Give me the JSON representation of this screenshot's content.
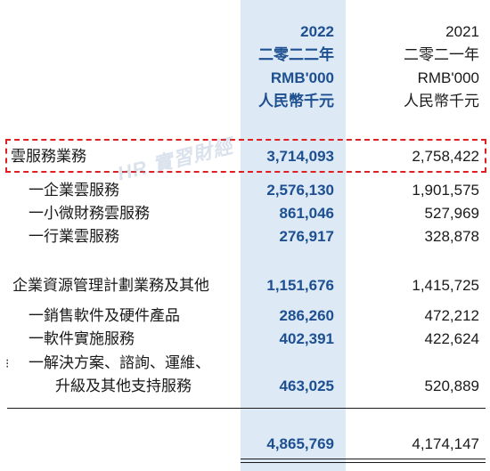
{
  "headers": {
    "y2022": [
      "2022",
      "二零二二年",
      "RMB'000",
      "人民幣千元"
    ],
    "y2021": [
      "2021",
      "二零二一年",
      "RMB'000",
      "人民幣千元"
    ]
  },
  "rows": [
    {
      "label": "雲服務業務",
      "v2022": "3,714,093",
      "v2021": "2,758,422"
    },
    {
      "label": "一企業雲服務",
      "v2022": "2,576,130",
      "v2021": "1,901,575"
    },
    {
      "label": "一小微財務雲服務",
      "v2022": "861,046",
      "v2021": "527,969"
    },
    {
      "label": "一行業雲服務",
      "v2022": "276,917",
      "v2021": "328,878"
    },
    {
      "label": "企業資源管理計劃業務及其他",
      "v2022": "1,151,676",
      "v2021": "1,415,725"
    },
    {
      "label": "一銷售軟件及硬件產品",
      "v2022": "286,260",
      "v2021": "472,212"
    },
    {
      "label": "一軟件實施服務",
      "v2022": "402,391",
      "v2021": "422,624"
    },
    {
      "label": "一解決方案、諮詢、運維、",
      "v2022": "",
      "v2021": ""
    },
    {
      "label": "升級及其他支持服務",
      "v2022": "463,025",
      "v2021": "520,889"
    },
    {
      "label": "",
      "v2022": "4,865,769",
      "v2021": "4,174,147"
    }
  ],
  "watermark": "HR 實習財經",
  "bullet_mark": "⁝"
}
